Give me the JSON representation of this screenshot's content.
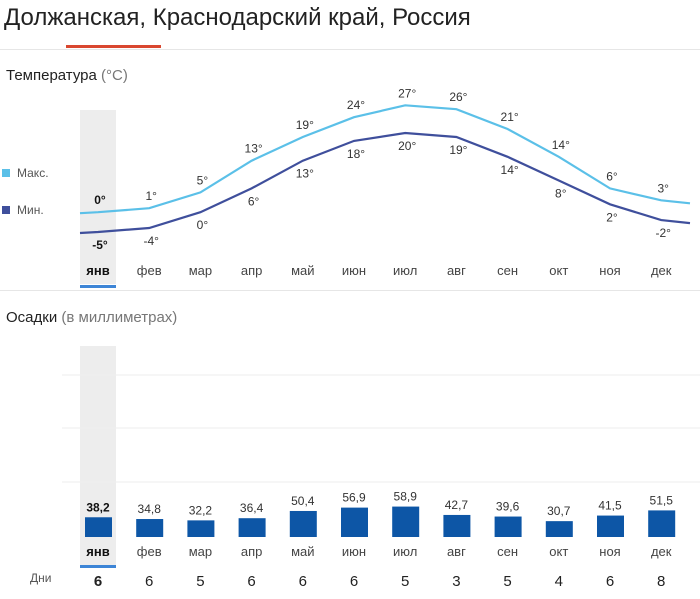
{
  "page": {
    "title": "Должанская, Краснодарский край, Россия",
    "accent_color": "#d9472f"
  },
  "temperature": {
    "label": "Температура",
    "unit": "(°C)",
    "legend_max": "Макс.",
    "legend_min": "Мин.",
    "color_max": "#5bc0e8",
    "color_min": "#3f4f9c"
  },
  "precipitation": {
    "label": "Осадки",
    "unit": "(в миллиметрах)",
    "bar_color": "#0d56a6",
    "days_label": "Дни"
  },
  "selected_month_index": 0,
  "chart_data": [
    {
      "type": "line",
      "categories": [
        "янв",
        "фев",
        "мар",
        "апр",
        "май",
        "июн",
        "июл",
        "авг",
        "сен",
        "окт",
        "ноя",
        "дек"
      ],
      "series": [
        {
          "name": "Макс.",
          "values": [
            0,
            1,
            5,
            13,
            19,
            24,
            27,
            26,
            21,
            14,
            6,
            3
          ],
          "labels": [
            "0°",
            "1°",
            "5°",
            "13°",
            "19°",
            "24°",
            "27°",
            "26°",
            "21°",
            "14°",
            "6°",
            "3°"
          ]
        },
        {
          "name": "Мин.",
          "values": [
            -5,
            -4,
            0,
            6,
            13,
            18,
            20,
            19,
            14,
            8,
            2,
            -2
          ],
          "labels": [
            "-5°",
            "-4°",
            "0°",
            "6°",
            "13°",
            "18°",
            "20°",
            "19°",
            "14°",
            "8°",
            "2°",
            "-2°"
          ]
        }
      ],
      "ylim": [
        -6,
        28
      ]
    },
    {
      "type": "bar",
      "categories": [
        "янв",
        "фев",
        "мар",
        "апр",
        "май",
        "июн",
        "июл",
        "авг",
        "сен",
        "окт",
        "ноя",
        "дек"
      ],
      "values": [
        38.2,
        34.8,
        32.2,
        36.4,
        50.4,
        56.9,
        58.9,
        42.7,
        39.6,
        30.7,
        41.5,
        51.5
      ],
      "labels": [
        "38,2",
        "34,8",
        "32,2",
        "36,4",
        "50,4",
        "56,9",
        "58,9",
        "42,7",
        "39,6",
        "30,7",
        "41,5",
        "51,5"
      ],
      "days": [
        6,
        6,
        5,
        6,
        6,
        6,
        5,
        3,
        5,
        4,
        6,
        8
      ],
      "ylim": [
        0,
        300
      ]
    }
  ]
}
